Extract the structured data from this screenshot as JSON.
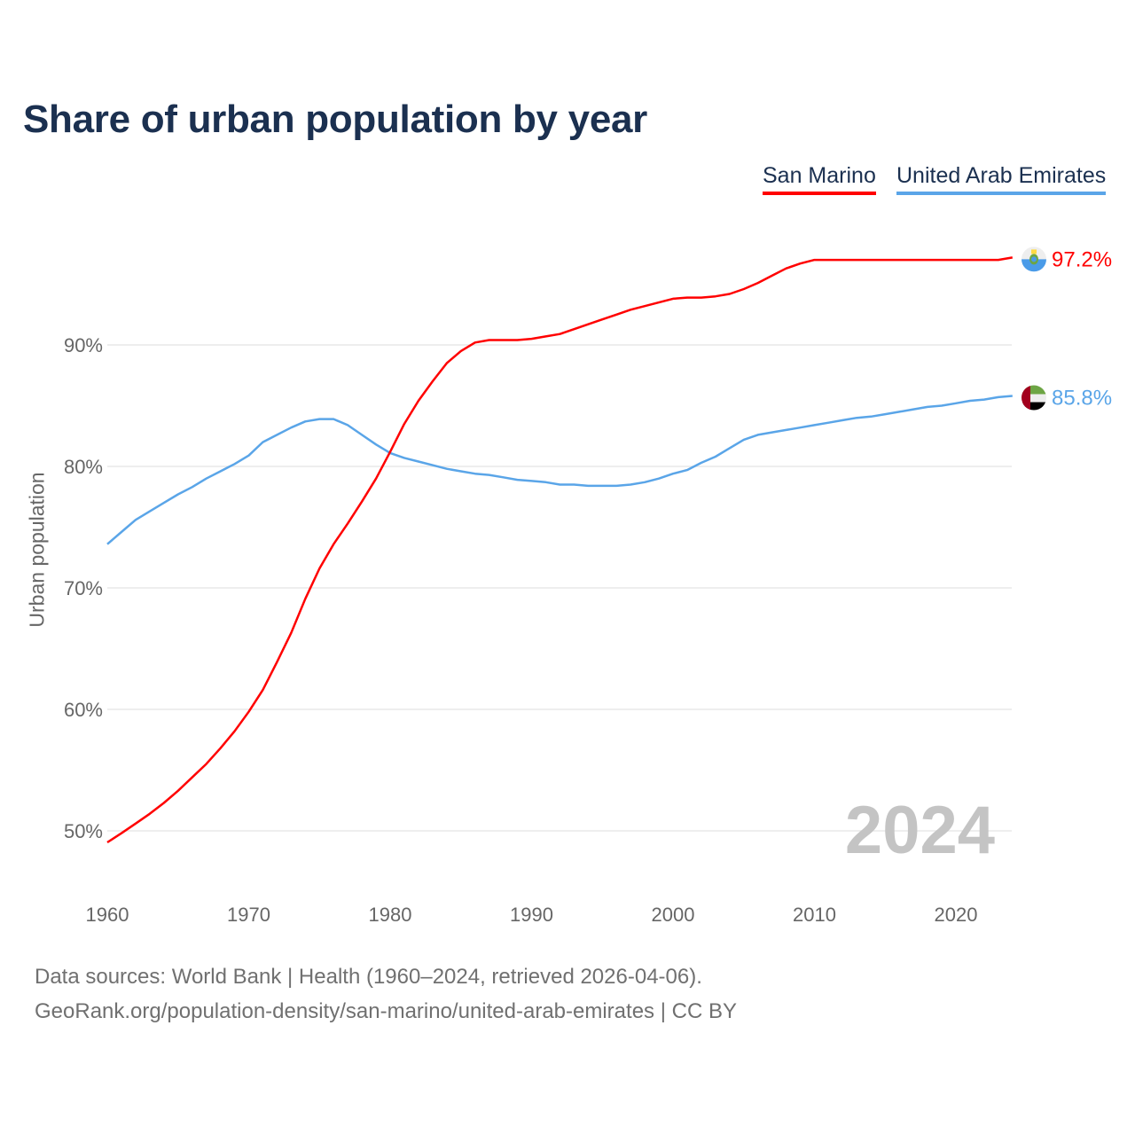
{
  "title": "Share of urban population by year",
  "legend": [
    "San Marino",
    "United Arab Emirates"
  ],
  "current_year": "2024",
  "footer": {
    "sources": "Data sources: World Bank | Health (1960–2024, retrieved 2026-04-06).",
    "url": "GeoRank.org/population-density/san-marino/united-arab-emirates | CC BY"
  },
  "chart_data": {
    "type": "line",
    "title": "Share of urban population by year",
    "xlabel": "",
    "ylabel": "Urban population",
    "xlim": [
      1960,
      2024
    ],
    "ylim": [
      45.5,
      100
    ],
    "x_ticks": [
      1960,
      1970,
      1980,
      1990,
      2000,
      2010,
      2020
    ],
    "y_ticks": [
      50,
      60,
      70,
      80,
      90
    ],
    "y_tick_labels": [
      "50%",
      "60%",
      "70%",
      "80%",
      "90%"
    ],
    "grid": true,
    "legend_position": "top-right",
    "series": [
      {
        "name": "San Marino",
        "color": "#ff0000",
        "flag": "san-marino-flag",
        "end_label": "97.2%",
        "values": [
          49.05,
          49.8,
          50.6,
          51.4,
          52.3,
          53.3,
          54.4,
          55.5,
          56.8,
          58.2,
          59.8,
          61.6,
          63.9,
          66.3,
          69.1,
          71.6,
          73.6,
          75.3,
          77.1,
          79.0,
          81.2,
          83.5,
          85.4,
          87.0,
          88.5,
          89.5,
          90.2,
          90.4,
          90.4,
          90.4,
          90.5,
          90.7,
          90.9,
          91.3,
          91.7,
          92.1,
          92.5,
          92.9,
          93.2,
          93.5,
          93.8,
          93.9,
          93.9,
          94.0,
          94.2,
          94.6,
          95.1,
          95.7,
          96.3,
          96.7,
          97.0,
          97.0,
          97.0,
          97.0,
          97.0,
          97.0,
          97.0,
          97.0,
          97.0,
          97.0,
          97.0,
          97.0,
          97.0,
          97.0,
          97.2
        ]
      },
      {
        "name": "United Arab Emirates",
        "color": "#5aa5e8",
        "flag": "uae-flag",
        "end_label": "85.8%",
        "values": [
          73.6,
          74.6,
          75.6,
          76.3,
          77.0,
          77.7,
          78.3,
          79.0,
          79.6,
          80.2,
          80.9,
          82.0,
          82.6,
          83.2,
          83.7,
          83.9,
          83.9,
          83.4,
          82.6,
          81.8,
          81.1,
          80.7,
          80.4,
          80.1,
          79.8,
          79.6,
          79.4,
          79.3,
          79.1,
          78.9,
          78.8,
          78.7,
          78.5,
          78.5,
          78.4,
          78.4,
          78.4,
          78.5,
          78.7,
          79.0,
          79.4,
          79.7,
          80.3,
          80.8,
          81.5,
          82.2,
          82.6,
          82.8,
          83.0,
          83.2,
          83.4,
          83.6,
          83.8,
          84.0,
          84.1,
          84.3,
          84.5,
          84.7,
          84.9,
          85.0,
          85.2,
          85.4,
          85.5,
          85.7,
          85.8
        ]
      }
    ]
  }
}
